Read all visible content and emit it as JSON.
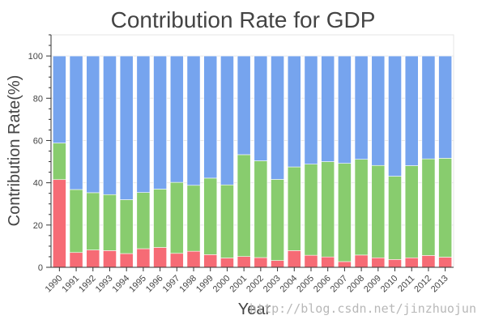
{
  "chart_data": {
    "type": "bar",
    "stacked": true,
    "title": "Contribution Rate for GDP",
    "xlabel": "Year",
    "ylabel": "Contribution Rate(%)",
    "ylim": [
      0,
      110
    ],
    "yticks": [
      0,
      20,
      40,
      60,
      80,
      100
    ],
    "grid": true,
    "categories": [
      "1990",
      "1991",
      "1992",
      "1993",
      "1994",
      "1995",
      "1996",
      "1997",
      "1998",
      "1999",
      "2000",
      "2001",
      "2002",
      "2003",
      "2004",
      "2005",
      "2006",
      "2007",
      "2008",
      "2009",
      "2010",
      "2011",
      "2012",
      "2013"
    ],
    "series": [
      {
        "color": "#f66b75",
        "values": [
          41.5,
          7.0,
          8.2,
          7.9,
          6.5,
          8.8,
          9.4,
          6.6,
          7.6,
          6.0,
          4.4,
          5.1,
          4.6,
          3.2,
          7.9,
          5.7,
          4.9,
          2.7,
          5.8,
          4.5,
          3.7,
          4.5,
          5.6,
          4.8
        ]
      },
      {
        "color": "#88cc6e",
        "values": [
          17.3,
          29.8,
          27.1,
          26.5,
          25.5,
          26.6,
          27.6,
          33.6,
          31.2,
          36.2,
          34.6,
          48.2,
          45.8,
          38.4,
          39.6,
          43.1,
          45.1,
          46.5,
          45.3,
          43.7,
          39.4,
          43.6,
          45.7,
          46.8
        ]
      },
      {
        "color": "#76a4ee",
        "values": [
          41.2,
          63.2,
          64.7,
          65.6,
          68.0,
          64.6,
          63.0,
          59.8,
          61.2,
          57.8,
          61.0,
          46.7,
          49.6,
          58.4,
          52.5,
          51.2,
          50.0,
          50.8,
          48.9,
          51.8,
          56.9,
          51.9,
          48.7,
          48.4
        ]
      }
    ]
  },
  "watermark": "http://blog.csdn.net/jinzhuojun"
}
